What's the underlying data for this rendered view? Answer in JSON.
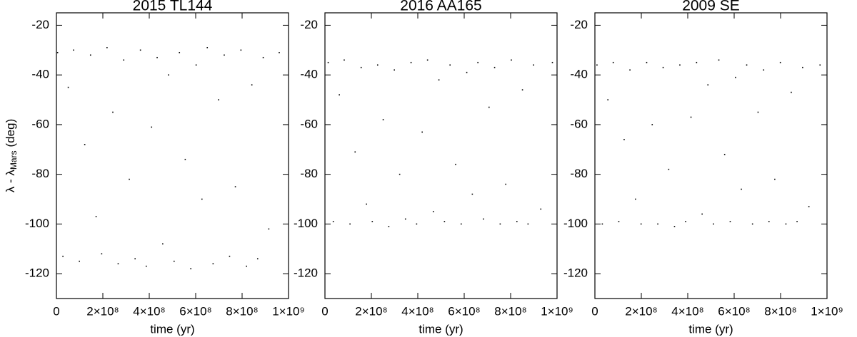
{
  "chart_data": [
    {
      "type": "scatter",
      "title": "2015 TL144",
      "xlabel": "time (yr)",
      "ylabel": [
        "λ - λ",
        "Mars",
        "(deg)"
      ],
      "color": "#000000",
      "xlim": [
        0,
        1000000000.0
      ],
      "ylim": [
        -130,
        -15
      ],
      "xticks": [
        0,
        {
          "value": 200000000.0,
          "label": "2×10⁸"
        },
        {
          "value": 400000000.0,
          "label": "4×10⁸"
        },
        {
          "value": 600000000.0,
          "label": "6×10⁸"
        },
        {
          "value": 800000000.0,
          "label": "8×10⁸"
        },
        {
          "value": 1000000000.0,
          "label": "1×10⁹"
        }
      ],
      "yticks": [
        -20,
        -40,
        -60,
        -80,
        -100,
        -120
      ],
      "x": [
        5000000.0,
        28000000.0,
        51000000.0,
        74000000.0,
        99000000.0,
        122000000.0,
        147000000.0,
        171000000.0,
        195000000.0,
        218000000.0,
        243000000.0,
        266000000.0,
        290000000.0,
        314000000.0,
        339000000.0,
        362000000.0,
        387000000.0,
        410000000.0,
        434000000.0,
        458000000.0,
        483000000.0,
        507000000.0,
        530000000.0,
        555000000.0,
        579000000.0,
        602000000.0,
        627000000.0,
        650000000.0,
        675000000.0,
        699000000.0,
        723000000.0,
        746000000.0,
        771000000.0,
        795000000.0,
        819000000.0,
        842000000.0,
        867000000.0,
        891000000.0,
        915000000.0,
        960000000.0
      ],
      "y": [
        -31,
        -113,
        -45,
        -30,
        -115,
        -68,
        -32,
        -97,
        -112,
        -29,
        -55,
        -116,
        -34,
        -82,
        -114,
        -30,
        -117,
        -61,
        -33,
        -108,
        -40,
        -115,
        -31,
        -74,
        -118,
        -36,
        -90,
        -29,
        -116,
        -50,
        -32,
        -113,
        -85,
        -30,
        -117,
        -44,
        -114,
        -33,
        -102,
        -31
      ]
    },
    {
      "type": "scatter",
      "title": "2016 AA165",
      "xlabel": "time (yr)",
      "color": "#000000",
      "xlim": [
        0,
        1000000000.0
      ],
      "ylim": [
        -130,
        -15
      ],
      "xticks": [
        0,
        {
          "value": 200000000.0,
          "label": "2×10⁸"
        },
        {
          "value": 400000000.0,
          "label": "4×10⁸"
        },
        {
          "value": 600000000.0,
          "label": "6×10⁸"
        },
        {
          "value": 800000000.0,
          "label": "8×10⁸"
        },
        {
          "value": 1000000000.0,
          "label": "1×10⁹"
        }
      ],
      "yticks": [
        -20,
        -40,
        -60,
        -80,
        -100,
        -120
      ],
      "x": [
        14000000.0,
        36000000.0,
        62000000.0,
        83000000.0,
        108000000.0,
        130000000.0,
        156000000.0,
        179000000.0,
        204000000.0,
        227000000.0,
        251000000.0,
        275000000.0,
        299000000.0,
        322000000.0,
        347000000.0,
        371000000.0,
        395000000.0,
        419000000.0,
        442000000.0,
        467000000.0,
        491000000.0,
        515000000.0,
        539000000.0,
        563000000.0,
        587000000.0,
        611000000.0,
        635000000.0,
        659000000.0,
        683000000.0,
        707000000.0,
        731000000.0,
        755000000.0,
        779000000.0,
        803000000.0,
        827000000.0,
        851000000.0,
        875000000.0,
        899000000.0,
        930000000.0,
        980000000.0
      ],
      "y": [
        -35,
        -99,
        -48,
        -34,
        -100,
        -71,
        -37,
        -92,
        -99,
        -36,
        -58,
        -101,
        -38,
        -80,
        -98,
        -35,
        -100,
        -63,
        -34,
        -95,
        -42,
        -99,
        -36,
        -76,
        -100,
        -39,
        -88,
        -35,
        -98,
        -53,
        -37,
        -100,
        -84,
        -34,
        -99,
        -46,
        -100,
        -36,
        -94,
        -35
      ]
    },
    {
      "type": "scatter",
      "title": "2009 SE",
      "xlabel": "time (yr)",
      "color": "#000000",
      "xlim": [
        0,
        1000000000.0
      ],
      "ylim": [
        -130,
        -15
      ],
      "xticks": [
        0,
        {
          "value": 200000000.0,
          "label": "2×10⁸"
        },
        {
          "value": 400000000.0,
          "label": "4×10⁸"
        },
        {
          "value": 600000000.0,
          "label": "6×10⁸"
        },
        {
          "value": 800000000.0,
          "label": "8×10⁸"
        },
        {
          "value": 1000000000.0,
          "label": "1×10⁹"
        }
      ],
      "yticks": [
        -20,
        -40,
        -60,
        -80,
        -100,
        -120
      ],
      "x": [
        9000000.0,
        32000000.0,
        56000000.0,
        79000000.0,
        103000000.0,
        126000000.0,
        151000000.0,
        175000000.0,
        199000000.0,
        223000000.0,
        247000000.0,
        271000000.0,
        294000000.0,
        318000000.0,
        343000000.0,
        366000000.0,
        391000000.0,
        414000000.0,
        438000000.0,
        462000000.0,
        487000000.0,
        511000000.0,
        534000000.0,
        559000000.0,
        583000000.0,
        606000000.0,
        631000000.0,
        654000000.0,
        679000000.0,
        703000000.0,
        727000000.0,
        750000000.0,
        775000000.0,
        799000000.0,
        823000000.0,
        846000000.0,
        871000000.0,
        895000000.0,
        922000000.0,
        970000000.0
      ],
      "y": [
        -36,
        -100,
        -50,
        -35,
        -99,
        -66,
        -38,
        -90,
        -100,
        -35,
        -60,
        -100,
        -37,
        -78,
        -101,
        -36,
        -99,
        -57,
        -35,
        -96,
        -44,
        -100,
        -34,
        -72,
        -99,
        -41,
        -86,
        -36,
        -100,
        -55,
        -38,
        -99,
        -82,
        -35,
        -100,
        -47,
        -99,
        -37,
        -93,
        -36
      ]
    }
  ]
}
